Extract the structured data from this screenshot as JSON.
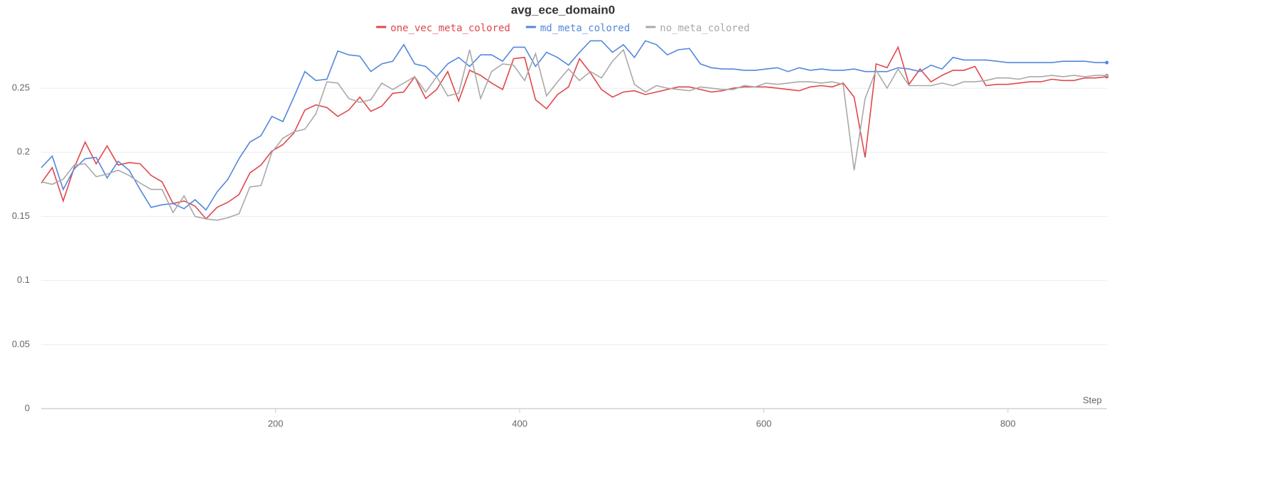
{
  "chart_data": {
    "type": "line",
    "title": "avg_ece_domain0",
    "xlabel": "Step",
    "x": [
      8,
      17,
      26,
      35,
      44,
      53,
      62,
      71,
      80,
      89,
      98,
      107,
      116,
      125,
      134,
      143,
      152,
      161,
      170,
      179,
      188,
      197,
      206,
      215,
      224,
      233,
      242,
      251,
      260,
      269,
      278,
      287,
      296,
      305,
      314,
      323,
      332,
      341,
      350,
      359,
      368,
      377,
      386,
      395,
      404,
      413,
      422,
      431,
      440,
      449,
      458,
      467,
      476,
      485,
      494,
      503,
      512,
      521,
      530,
      539,
      548,
      557,
      566,
      575,
      584,
      593,
      602,
      611,
      620,
      629,
      638,
      647,
      656,
      665,
      674,
      683,
      692,
      701,
      710,
      719,
      728,
      737,
      746,
      755,
      764,
      773,
      782,
      791,
      800,
      809,
      818,
      827,
      836,
      845,
      854,
      863,
      872,
      881
    ],
    "series": [
      {
        "name": "one_vec_meta_colored",
        "color": "#e0474c",
        "values": [
          0.176,
          0.188,
          0.162,
          0.188,
          0.208,
          0.191,
          0.205,
          0.19,
          0.192,
          0.191,
          0.182,
          0.177,
          0.16,
          0.162,
          0.158,
          0.148,
          0.157,
          0.161,
          0.167,
          0.184,
          0.19,
          0.201,
          0.206,
          0.215,
          0.233,
          0.237,
          0.235,
          0.228,
          0.233,
          0.243,
          0.232,
          0.236,
          0.246,
          0.247,
          0.259,
          0.242,
          0.249,
          0.263,
          0.24,
          0.264,
          0.26,
          0.254,
          0.249,
          0.273,
          0.274,
          0.241,
          0.234,
          0.245,
          0.251,
          0.273,
          0.262,
          0.249,
          0.243,
          0.247,
          0.248,
          0.245,
          0.247,
          0.249,
          0.251,
          0.251,
          0.249,
          0.247,
          0.248,
          0.25,
          0.251,
          0.251,
          0.251,
          0.25,
          0.249,
          0.248,
          0.251,
          0.252,
          0.251,
          0.254,
          0.243,
          0.196,
          0.269,
          0.266,
          0.282,
          0.253,
          0.265,
          0.255,
          0.26,
          0.264,
          0.264,
          0.267,
          0.252,
          0.253,
          0.253,
          0.254,
          0.255,
          0.255,
          0.257,
          0.256,
          0.256,
          0.258,
          0.258,
          0.259
        ]
      },
      {
        "name": "md_meta_colored",
        "color": "#5387dd",
        "values": [
          0.188,
          0.197,
          0.171,
          0.187,
          0.195,
          0.196,
          0.18,
          0.193,
          0.186,
          0.171,
          0.157,
          0.159,
          0.16,
          0.156,
          0.163,
          0.155,
          0.169,
          0.179,
          0.195,
          0.208,
          0.213,
          0.228,
          0.224,
          0.243,
          0.263,
          0.256,
          0.257,
          0.279,
          0.276,
          0.275,
          0.263,
          0.269,
          0.271,
          0.284,
          0.269,
          0.267,
          0.259,
          0.269,
          0.274,
          0.267,
          0.276,
          0.276,
          0.271,
          0.282,
          0.282,
          0.267,
          0.278,
          0.274,
          0.268,
          0.278,
          0.287,
          0.287,
          0.278,
          0.284,
          0.274,
          0.287,
          0.284,
          0.276,
          0.28,
          0.281,
          0.269,
          0.266,
          0.265,
          0.265,
          0.264,
          0.264,
          0.265,
          0.266,
          0.263,
          0.266,
          0.264,
          0.265,
          0.264,
          0.264,
          0.265,
          0.263,
          0.263,
          0.263,
          0.266,
          0.265,
          0.263,
          0.268,
          0.265,
          0.274,
          0.272,
          0.272,
          0.272,
          0.271,
          0.27,
          0.27,
          0.27,
          0.27,
          0.27,
          0.271,
          0.271,
          0.271,
          0.27,
          0.27
        ]
      },
      {
        "name": "no_meta_colored",
        "color": "#a9a9a9",
        "values": [
          0.177,
          0.175,
          0.179,
          0.19,
          0.191,
          0.181,
          0.183,
          0.186,
          0.182,
          0.176,
          0.171,
          0.171,
          0.153,
          0.166,
          0.15,
          0.148,
          0.147,
          0.149,
          0.152,
          0.173,
          0.174,
          0.2,
          0.211,
          0.216,
          0.218,
          0.23,
          0.255,
          0.254,
          0.242,
          0.239,
          0.241,
          0.254,
          0.249,
          0.254,
          0.259,
          0.247,
          0.259,
          0.244,
          0.246,
          0.28,
          0.242,
          0.263,
          0.269,
          0.268,
          0.256,
          0.277,
          0.244,
          0.255,
          0.265,
          0.256,
          0.263,
          0.258,
          0.271,
          0.28,
          0.253,
          0.247,
          0.252,
          0.25,
          0.249,
          0.248,
          0.251,
          0.25,
          0.249,
          0.249,
          0.252,
          0.251,
          0.254,
          0.253,
          0.254,
          0.255,
          0.255,
          0.254,
          0.255,
          0.253,
          0.186,
          0.242,
          0.264,
          0.25,
          0.265,
          0.252,
          0.252,
          0.252,
          0.254,
          0.252,
          0.255,
          0.255,
          0.256,
          0.258,
          0.258,
          0.257,
          0.259,
          0.259,
          0.26,
          0.259,
          0.26,
          0.259,
          0.26,
          0.26
        ]
      }
    ],
    "xlim": [
      8,
      881
    ],
    "xticks": [
      200,
      400,
      600,
      800
    ],
    "ylim": [
      0,
      0.285
    ],
    "yticks": [
      0,
      0.05,
      0.1,
      0.15,
      0.2,
      0.25
    ],
    "grid": true,
    "legend": "top"
  }
}
